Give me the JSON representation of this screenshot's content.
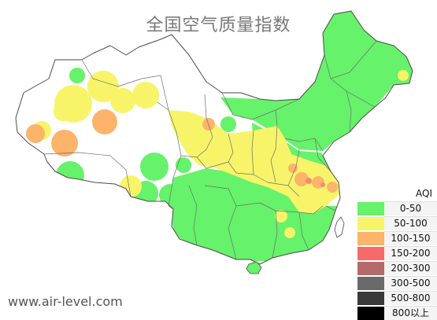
{
  "map": {
    "title": "全国空气质量指数",
    "watermark": "www.air-level.com",
    "colors": {
      "background": "#ffffff",
      "boundary": "#4a4a4a",
      "province_line": "#6e6e6e",
      "unmonitored": "#ffffff"
    }
  },
  "legend": {
    "title": "AQI",
    "items": [
      {
        "range": "0-50",
        "color": "#66f26a"
      },
      {
        "range": "50-100",
        "color": "#f8f46a"
      },
      {
        "range": "100-150",
        "color": "#fbb46a"
      },
      {
        "range": "150-200",
        "color": "#f86a6a"
      },
      {
        "range": "200-300",
        "color": "#b46a6a"
      },
      {
        "range": "300-500",
        "color": "#6a6a6a"
      },
      {
        "range": "500-800",
        "color": "#3a3a3a"
      },
      {
        "range": "800以上",
        "color": "#000000"
      }
    ]
  }
}
